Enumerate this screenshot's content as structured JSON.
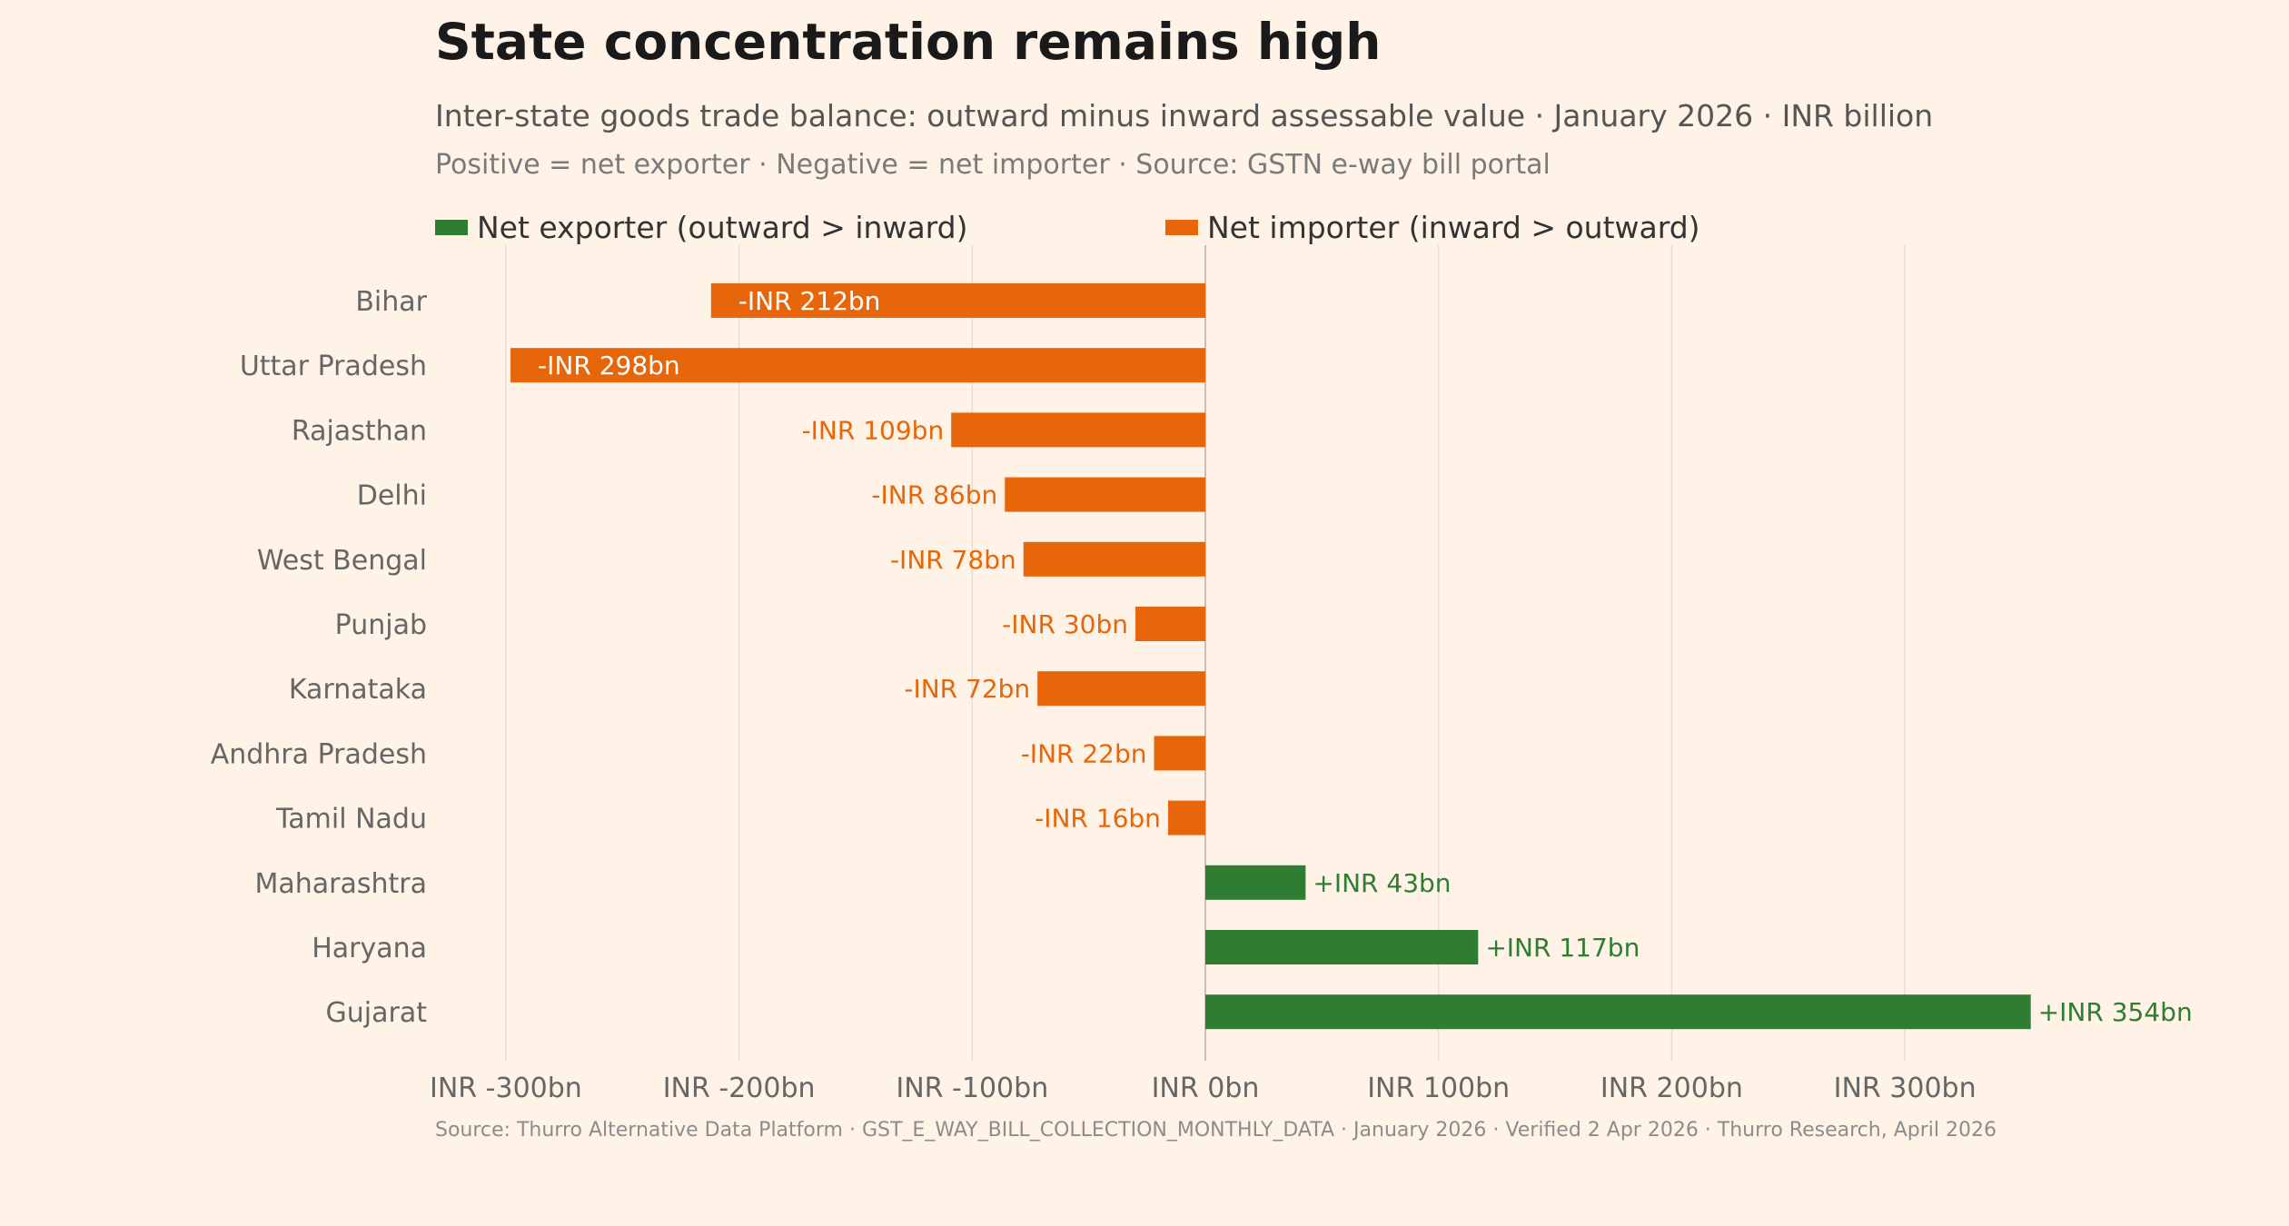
{
  "header": {
    "title": "State concentration remains high",
    "subtitle": "Inter-state goods trade balance: outward minus inward assessable value · January 2026 · INR billion",
    "note": "Positive = net exporter  ·  Negative = net importer  ·  Source: GSTN e-way bill portal"
  },
  "legend": {
    "exporter": {
      "label": "Net exporter (outward > inward)",
      "color": "#2e7d32"
    },
    "importer": {
      "label": "Net importer (inward > outward)",
      "color": "#e8660a"
    }
  },
  "footer": {
    "source": "Source: Thurro Alternative Data Platform · GST_E_WAY_BILL_COLLECTION_MONTHLY_DATA · January 2026 · Verified 2 Apr 2026 · Thurro Research, April 2026"
  },
  "chart_data": {
    "type": "bar",
    "orientation": "horizontal",
    "title": "State concentration remains high",
    "xlabel": "",
    "ylabel": "",
    "xlim": [
      -300,
      354
    ],
    "grid": true,
    "legend_position": "top-left",
    "categories": [
      "Bihar",
      "Uttar Pradesh",
      "Rajasthan",
      "Delhi",
      "West Bengal",
      "Punjab",
      "Karnataka",
      "Andhra Pradesh",
      "Tamil Nadu",
      "Maharashtra",
      "Haryana",
      "Gujarat"
    ],
    "values": [
      -212,
      -298,
      -109,
      -86,
      -78,
      -30,
      -72,
      -22,
      -16,
      43,
      117,
      354
    ],
    "data_labels": [
      "-INR 212bn",
      "-INR 298bn",
      "-INR 109bn",
      "-INR 86bn",
      "-INR 78bn",
      "-INR 30bn",
      "-INR 72bn",
      "-INR 22bn",
      "-INR 16bn",
      "+INR 43bn",
      "+INR 117bn",
      "+INR 354bn"
    ],
    "inside_labels": [
      true,
      true,
      false,
      false,
      false,
      false,
      false,
      false,
      false,
      false,
      false,
      false
    ],
    "x_ticks": [
      -300,
      -200,
      -100,
      0,
      100,
      200,
      300
    ],
    "x_tick_labels": [
      "INR -300bn",
      "INR -200bn",
      "INR -100bn",
      "INR 0bn",
      "INR 100bn",
      "INR 200bn",
      "INR 300bn"
    ],
    "colors": {
      "positive": "#2e7d32",
      "negative": "#e8660a",
      "inside_label": "#ffffff",
      "grid": "#e6ddd3",
      "zero_line": "#c8c0b8"
    }
  }
}
